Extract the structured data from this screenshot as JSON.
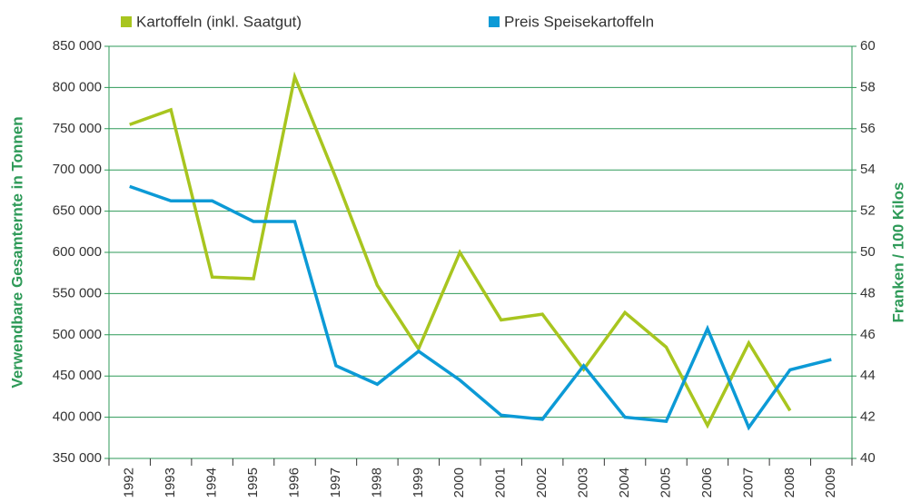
{
  "chart_data": {
    "type": "line",
    "categories": [
      "1992",
      "1993",
      "1994",
      "1995",
      "1996",
      "1997",
      "1998",
      "1999",
      "2000",
      "2001",
      "2002",
      "2003",
      "2004",
      "2005",
      "2006",
      "2007",
      "2008",
      "2009"
    ],
    "series": [
      {
        "name": "Kartoffeln (inkl. Saatgut)",
        "color": "#a8c51f",
        "values": [
          755000,
          773000,
          570000,
          568000,
          813000,
          690000,
          560000,
          483000,
          600000,
          518000,
          525000,
          458000,
          527000,
          485000,
          390000,
          490000,
          408000,
          null
        ]
      },
      {
        "name": "Preis Speisekartoffeln",
        "color": "#0c9ad6",
        "axis": "y2",
        "values": [
          53.2,
          52.5,
          52.5,
          51.5,
          51.5,
          44.5,
          43.6,
          45.2,
          43.8,
          42.1,
          41.9,
          44.5,
          42.0,
          41.8,
          46.3,
          41.5,
          44.3,
          44.8
        ]
      }
    ],
    "y_label": "Verwendbare Gesamternte in Tonnen",
    "y2_label": "Franken / 100 Kilos",
    "ylim": [
      350000,
      850000
    ],
    "yticks": [
      {
        "value": 350000,
        "label": "350 000"
      },
      {
        "value": 400000,
        "label": "400 000"
      },
      {
        "value": 450000,
        "label": "450 000"
      },
      {
        "value": 500000,
        "label": "500 000"
      },
      {
        "value": 550000,
        "label": "550 000"
      },
      {
        "value": 600000,
        "label": "600 000"
      },
      {
        "value": 650000,
        "label": "650 000"
      },
      {
        "value": 700000,
        "label": "700 000"
      },
      {
        "value": 750000,
        "label": "750 000"
      },
      {
        "value": 800000,
        "label": "800 000"
      },
      {
        "value": 850000,
        "label": "850 000"
      }
    ],
    "y2lim": [
      40,
      60
    ],
    "y2ticks": [
      40,
      42,
      44,
      46,
      48,
      50,
      52,
      54,
      56,
      58,
      60
    ],
    "grid": true,
    "grid_color": "#2e9a58"
  }
}
